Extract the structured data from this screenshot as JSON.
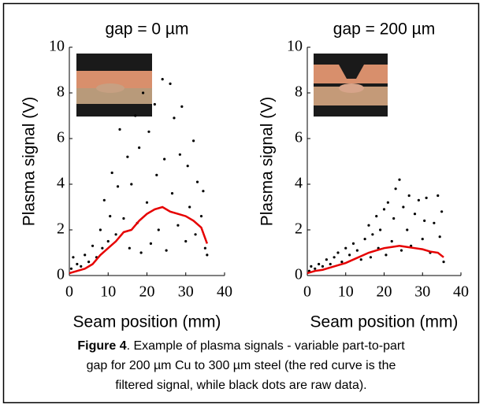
{
  "chart_data": [
    {
      "type": "scatter",
      "title": "gap = 0 µm",
      "x_label": "Seam position (mm)",
      "y_label": "Plasma signal (V)",
      "xlim": [
        0,
        40
      ],
      "ylim": [
        0,
        10
      ],
      "xticks": [
        0,
        10,
        20,
        30,
        40
      ],
      "yticks": [
        0,
        2,
        4,
        6,
        8,
        10
      ],
      "series": [
        {
          "mode": "markers",
          "color": "#000000",
          "x": [
            0.5,
            1,
            2,
            3,
            4,
            5,
            6,
            7,
            8,
            8.5,
            9,
            10,
            10.5,
            11,
            12,
            12.5,
            13,
            14,
            15,
            15.5,
            16,
            17,
            17.5,
            18,
            18.5,
            19,
            20,
            20.5,
            21,
            22,
            22.5,
            23,
            24,
            24.5,
            25,
            26,
            26.5,
            27,
            28,
            28.5,
            29,
            30,
            30.5,
            31,
            32,
            32.5,
            33,
            34,
            34.5,
            35,
            35.5
          ],
          "values": [
            0.3,
            0.8,
            0.5,
            0.4,
            0.9,
            0.6,
            1.3,
            0.8,
            2.0,
            1.2,
            3.3,
            1.5,
            2.6,
            4.5,
            1.8,
            3.9,
            6.4,
            2.5,
            5.2,
            1.2,
            4.0,
            7.0,
            2.3,
            5.6,
            1.0,
            8.0,
            3.2,
            6.3,
            1.4,
            7.5,
            4.4,
            2.0,
            8.6,
            5.1,
            1.1,
            8.4,
            3.6,
            6.9,
            2.2,
            5.3,
            7.4,
            1.5,
            4.8,
            3.0,
            5.9,
            1.8,
            4.1,
            2.6,
            3.7,
            1.2,
            0.9
          ]
        },
        {
          "mode": "line",
          "color": "#e60000",
          "x": [
            0,
            2,
            4,
            6,
            8,
            10,
            12,
            14,
            16,
            18,
            20,
            22,
            24,
            26,
            28,
            30,
            32,
            34,
            35.5
          ],
          "values": [
            0.1,
            0.2,
            0.3,
            0.5,
            0.9,
            1.2,
            1.5,
            1.9,
            2.0,
            2.4,
            2.7,
            2.9,
            3.0,
            2.8,
            2.7,
            2.6,
            2.4,
            2.1,
            1.4
          ]
        }
      ]
    },
    {
      "type": "scatter",
      "title": "gap = 200 µm",
      "x_label": "Seam position (mm)",
      "y_label": "Plasma signal (V)",
      "xlim": [
        0,
        40
      ],
      "ylim": [
        0,
        10
      ],
      "xticks": [
        0,
        10,
        20,
        30,
        40
      ],
      "yticks": [
        0,
        2,
        4,
        6,
        8,
        10
      ],
      "series": [
        {
          "mode": "markers",
          "color": "#000000",
          "x": [
            0.5,
            1,
            2,
            3,
            4,
            5,
            6,
            7,
            8,
            9,
            10,
            11,
            12,
            13,
            14,
            15,
            16,
            16.5,
            17,
            18,
            18.5,
            19,
            20,
            20.5,
            21,
            22,
            22.5,
            23,
            24,
            24.5,
            25,
            26,
            26.5,
            27,
            28,
            29,
            30,
            30.5,
            31,
            32,
            33,
            34,
            34.5,
            35,
            35.5
          ],
          "values": [
            0.2,
            0.4,
            0.3,
            0.5,
            0.4,
            0.7,
            0.5,
            0.8,
            1.0,
            0.6,
            1.2,
            0.9,
            1.4,
            1.1,
            0.7,
            1.6,
            2.2,
            0.8,
            1.8,
            2.6,
            1.2,
            2.0,
            2.9,
            0.9,
            3.2,
            1.5,
            2.5,
            3.8,
            4.2,
            1.1,
            3.0,
            2.0,
            3.5,
            1.3,
            2.7,
            3.3,
            1.6,
            2.4,
            3.4,
            1.0,
            2.3,
            3.5,
            1.7,
            2.8,
            0.6
          ]
        },
        {
          "mode": "line",
          "color": "#e60000",
          "x": [
            0,
            2,
            4,
            6,
            8,
            10,
            12,
            14,
            16,
            18,
            20,
            22,
            24,
            26,
            28,
            30,
            32,
            34,
            35.5
          ],
          "values": [
            0.1,
            0.2,
            0.25,
            0.35,
            0.45,
            0.55,
            0.7,
            0.85,
            1.0,
            1.1,
            1.2,
            1.25,
            1.3,
            1.25,
            1.2,
            1.15,
            1.05,
            1.0,
            0.8
          ]
        }
      ]
    }
  ],
  "caption": {
    "label": "Figure 4",
    "lines": [
      ". Example of plasma signals - variable part-to-part",
      "gap for 200 µm Cu to 300 µm steel (the red curve is the",
      "filtered signal, while black dots are raw data)."
    ]
  }
}
